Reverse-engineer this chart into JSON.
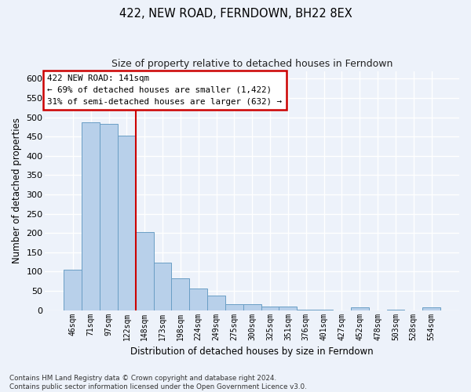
{
  "title": "422, NEW ROAD, FERNDOWN, BH22 8EX",
  "subtitle": "Size of property relative to detached houses in Ferndown",
  "xlabel": "Distribution of detached houses by size in Ferndown",
  "ylabel": "Number of detached properties",
  "bar_color": "#b8d0ea",
  "bar_edge_color": "#6a9ec5",
  "background_color": "#edf2fa",
  "grid_color": "#ffffff",
  "categories": [
    "46sqm",
    "71sqm",
    "97sqm",
    "122sqm",
    "148sqm",
    "173sqm",
    "198sqm",
    "224sqm",
    "249sqm",
    "275sqm",
    "300sqm",
    "325sqm",
    "351sqm",
    "376sqm",
    "401sqm",
    "427sqm",
    "452sqm",
    "478sqm",
    "503sqm",
    "528sqm",
    "554sqm"
  ],
  "values": [
    105,
    487,
    482,
    452,
    202,
    123,
    83,
    57,
    38,
    15,
    15,
    10,
    9,
    1,
    1,
    0,
    7,
    0,
    1,
    0,
    7
  ],
  "ylim": [
    0,
    620
  ],
  "yticks": [
    0,
    50,
    100,
    150,
    200,
    250,
    300,
    350,
    400,
    450,
    500,
    550,
    600
  ],
  "property_line_x": 4.0,
  "annotation_text": "422 NEW ROAD: 141sqm\n← 69% of detached houses are smaller (1,422)\n31% of semi-detached houses are larger (632) →",
  "footnote": "Contains HM Land Registry data © Crown copyright and database right 2024.\nContains public sector information licensed under the Open Government Licence v3.0.",
  "annotation_box_color": "#ffffff",
  "annotation_box_edge": "#cc0000",
  "property_line_color": "#cc0000",
  "fig_width": 6.0,
  "fig_height": 5.0
}
